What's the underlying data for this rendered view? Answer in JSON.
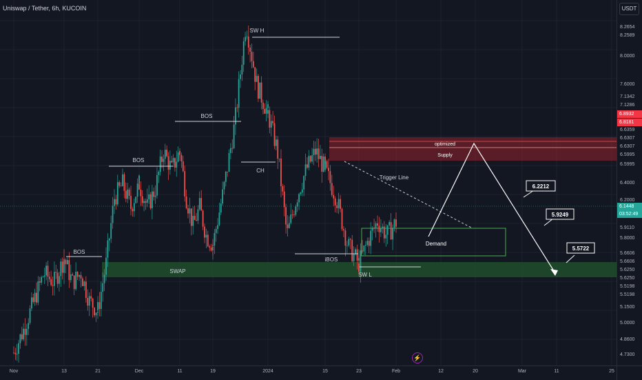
{
  "header": {
    "symbol_title": "Uniswap / Tether, 6h, KUCOIN",
    "currency_button": "USDT"
  },
  "colors": {
    "background": "#131722",
    "candle_up": "#26a69a",
    "candle_down": "#ef5350",
    "supply_zone": "#b2262f",
    "swap_zone": "#1f4d2b",
    "demand_border": "#4caf50",
    "price_tag_current": "#26a69a",
    "price_tag_red": "#f23645"
  },
  "price_axis": {
    "labels": [
      "8.2654",
      "8.2589",
      "8.0000",
      "7.6000",
      "7.1342",
      "7.1286",
      "6.6359",
      "6.6307",
      "6.6307",
      "6.5995",
      "6.5995",
      "6.4000",
      "6.2000",
      "5.9110",
      "5.8000",
      "5.6606",
      "5.6606",
      "5.6250",
      "5.6250",
      "5.5198",
      "5.5198",
      "5.1500",
      "5.0000",
      "4.8600",
      "4.7300"
    ],
    "red_tag_1": "6.8932",
    "red_tag_2": "6.8181",
    "current_price": "6.1448",
    "countdown": "03:52:49"
  },
  "time_axis": {
    "labels": [
      "Nov",
      "13",
      "21",
      "Dec",
      "11",
      "19",
      "2024",
      "15",
      "23",
      "Feb",
      "12",
      "20",
      "Mar",
      "11",
      "25"
    ]
  },
  "annotations": {
    "sw_h": "SW H",
    "bos": "BOS",
    "ch": "CH",
    "ibos": "iBOS",
    "sw_l": "SW L",
    "swap": "SWAP",
    "optimized": "optimized",
    "supply": "Supply",
    "trigger_line": "Trigger Line",
    "demand": "Demand"
  },
  "targets": [
    "6.2212",
    "5.9249",
    "5.5722"
  ],
  "chart_data": {
    "type": "candlestick",
    "symbol": "Uniswap / Tether",
    "interval": "6h",
    "exchange": "KUCOIN",
    "x_labels": [
      "Nov",
      "13",
      "21",
      "Dec",
      "11",
      "19",
      "2024",
      "15",
      "23",
      "Feb",
      "12",
      "20",
      "Mar",
      "11",
      "25"
    ],
    "ylim": [
      4.65,
      8.4
    ],
    "trend": [
      {
        "date": "Nov",
        "close": 4.75
      },
      {
        "date": "13",
        "close": 5.75
      },
      {
        "date": "21",
        "close": 5.2
      },
      {
        "date": "Dec",
        "close": 6.55
      },
      {
        "date": "11",
        "close": 6.9
      },
      {
        "date": "19",
        "close": 5.9
      },
      {
        "date": "2024",
        "close": 8.27
      },
      {
        "date": "15",
        "close": 6.7
      },
      {
        "date": "23",
        "close": 5.7
      },
      {
        "date": "Feb",
        "close": 6.14
      }
    ],
    "zones": {
      "supply": {
        "label": "Supply",
        "note": "optimized"
      },
      "demand": {
        "label": "Demand"
      },
      "swap": {
        "label": "SWAP"
      }
    },
    "targets": [
      6.2212,
      5.9249,
      5.5722
    ],
    "current_price": 6.1448
  }
}
